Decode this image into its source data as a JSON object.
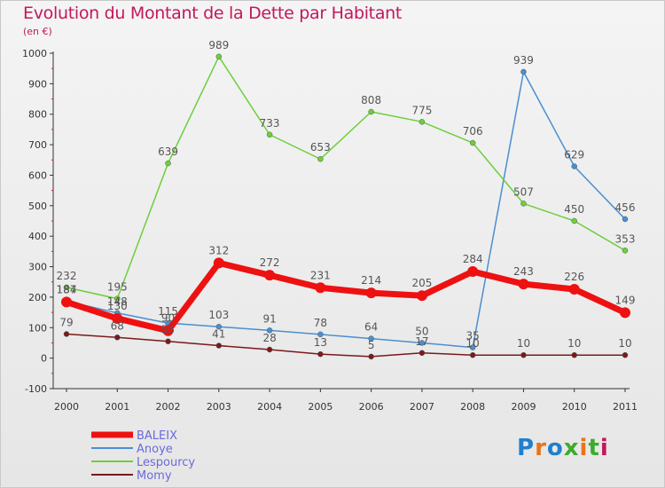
{
  "title": "Evolution du Montant de la Dette par Habitant",
  "subtitle": "(en €)",
  "logo": {
    "text": "Proxiti",
    "colors": [
      "#1f7fd0",
      "#e8731a",
      "#1f7fd0",
      "#3cab2e",
      "#e8731a",
      "#3cab2e",
      "#c2185b"
    ]
  },
  "chart_data": {
    "type": "line",
    "x": [
      "2000",
      "2001",
      "2002",
      "2003",
      "2004",
      "2005",
      "2006",
      "2007",
      "2008",
      "2009",
      "2010",
      "2011"
    ],
    "ylim": [
      -100,
      1000
    ],
    "yticks": [
      -100,
      0,
      100,
      200,
      300,
      400,
      500,
      600,
      700,
      800,
      900,
      1000
    ],
    "grid": false,
    "legend_position": "bottom-left",
    "series": [
      {
        "name": "BALEIX",
        "color": "#ee1111",
        "values": [
          184,
          130,
          90,
          312,
          272,
          231,
          214,
          205,
          284,
          243,
          226,
          149
        ]
      },
      {
        "name": "Anoye",
        "color": "#4a8fd0",
        "values": [
          187,
          148,
          115,
          103,
          91,
          78,
          64,
          50,
          35,
          939,
          629,
          456
        ]
      },
      {
        "name": "Lespourcy",
        "color": "#6ccf3c",
        "values": [
          232,
          195,
          639,
          989,
          733,
          653,
          808,
          775,
          706,
          507,
          450,
          353
        ]
      },
      {
        "name": "Momy",
        "color": "#7a1a1a",
        "values": [
          79,
          68,
          55,
          41,
          28,
          13,
          5,
          17,
          10,
          10,
          10,
          10
        ]
      }
    ],
    "data_labels": [
      {
        "series": "BALEIX",
        "labels": [
          "184",
          "130",
          "90",
          "312",
          "272",
          "231",
          "214",
          "205",
          "284",
          "243",
          "226",
          "149"
        ]
      },
      {
        "series": "Anoye",
        "labels": [
          "187",
          "148",
          "115",
          "103",
          "91",
          "78",
          "64",
          "50",
          "35",
          "939",
          "629",
          "456"
        ]
      },
      {
        "series": "Lespourcy",
        "labels": [
          "232",
          "195",
          "639",
          "989",
          "733",
          "653",
          "808",
          "775",
          "706",
          "507",
          "450",
          "353"
        ]
      },
      {
        "series": "Momy",
        "labels": [
          "79",
          "68",
          "55",
          "41",
          "28",
          "13",
          "5",
          "17",
          "10",
          "10",
          "10",
          "10"
        ]
      }
    ]
  }
}
